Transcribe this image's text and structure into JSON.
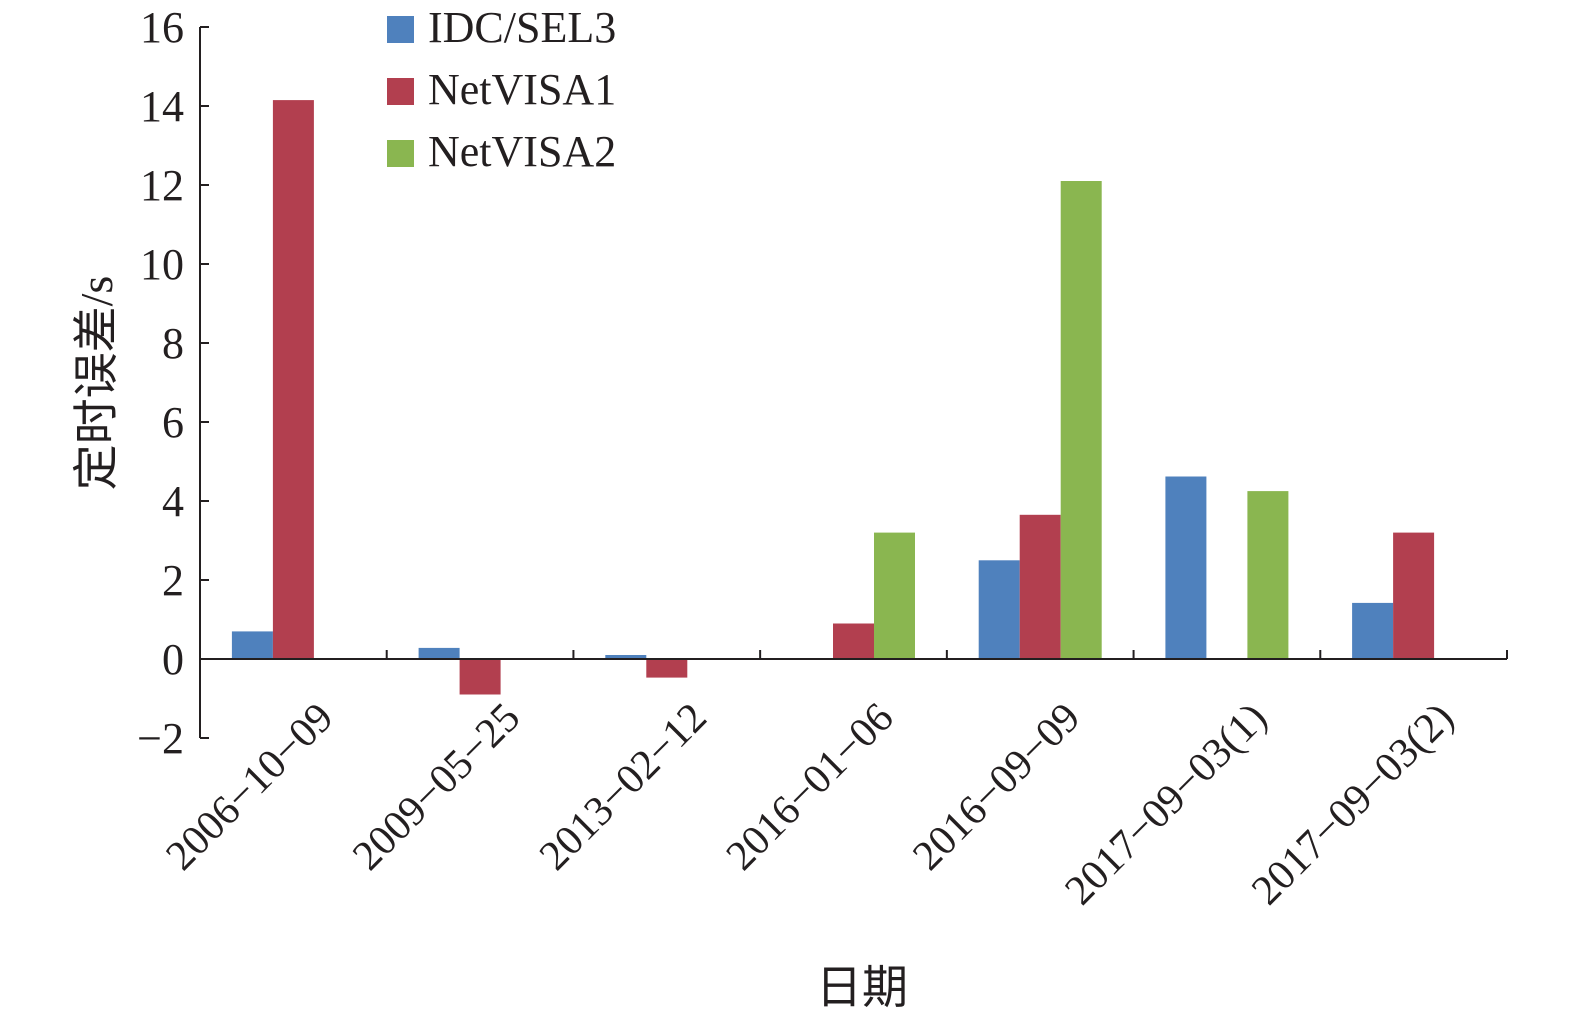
{
  "chart_data": {
    "type": "bar",
    "title": "",
    "xlabel": "日期",
    "ylabel": "定时误差/s",
    "ylim": [
      -2,
      16
    ],
    "yticks": [
      -2,
      0,
      2,
      4,
      6,
      8,
      10,
      12,
      14,
      16
    ],
    "ytick_labels": [
      "−2",
      "0",
      "2",
      "4",
      "6",
      "8",
      "10",
      "12",
      "14",
      "16"
    ],
    "categories": [
      "2006−10−09",
      "2009−05−25",
      "2013−02−12",
      "2016−01−06",
      "2016−09−09",
      "2017−09−03(1)",
      "2017−09−03(2)"
    ],
    "series": [
      {
        "name": "IDC/SEL3",
        "color": "#4f81bd",
        "values": [
          0.7,
          0.28,
          0.1,
          null,
          2.5,
          4.62,
          1.42
        ]
      },
      {
        "name": "NetVISA1",
        "color": "#b23f4f",
        "values": [
          14.15,
          -0.9,
          -0.47,
          0.9,
          3.65,
          null,
          3.2
        ]
      },
      {
        "name": "NetVISA2",
        "color": "#8ab650",
        "values": [
          null,
          null,
          null,
          3.2,
          12.1,
          4.25,
          null
        ]
      }
    ],
    "legend_position": "top-left",
    "grid": false
  }
}
